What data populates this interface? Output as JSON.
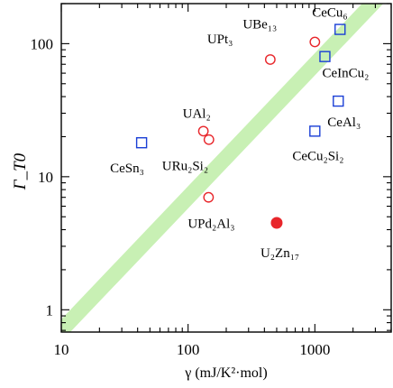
{
  "chart_data": {
    "type": "scatter",
    "title": "",
    "xlabel": "γ (mJ/K²·mol)",
    "ylabel": "Γ_T0",
    "x_scale": "log",
    "y_scale": "log",
    "xlim": [
      10,
      4000
    ],
    "ylim": [
      0.68,
      200
    ],
    "x_ticks": [
      10,
      100,
      1000
    ],
    "x_tick_labels": [
      "10",
      "100",
      "1000"
    ],
    "y_ticks": [
      1,
      10,
      100
    ],
    "y_tick_labels": [
      "1",
      "10",
      "100"
    ],
    "grid": false,
    "legend": "none",
    "trend_band": {
      "description_ratio": 0.07,
      "color": "#c8f0b4"
    },
    "colors": {
      "Ce": "#1a3fd6",
      "U": "#e8262b",
      "band": "#c8f0b4"
    },
    "series": [
      {
        "marker": "open-square",
        "points": [
          {
            "label": "CeCu₆",
            "x": 1580,
            "y": 128
          },
          {
            "label": "CeInCu₂",
            "x": 1200,
            "y": 80
          },
          {
            "label": "CeAl₃",
            "x": 1530,
            "y": 37
          },
          {
            "label": "CeCu₂Si₂",
            "x": 1000,
            "y": 22
          },
          {
            "label": "CeSn₃",
            "x": 43,
            "y": 18
          }
        ]
      },
      {
        "marker": "open-circle",
        "points": [
          {
            "label": "UBe₁₃",
            "x": 1000,
            "y": 103
          },
          {
            "label": "UPt₃",
            "x": 445,
            "y": 76
          },
          {
            "label": "UAl₂",
            "x": 132,
            "y": 22
          },
          {
            "label": "URu₂Si₂",
            "x": 146,
            "y": 19
          },
          {
            "label": "UPd₂Al₃",
            "x": 145,
            "y": 7
          }
        ]
      },
      {
        "marker": "filled-circle",
        "points": [
          {
            "label": "U₂Zn₁₇",
            "x": 500,
            "y": 4.5
          }
        ]
      }
    ]
  }
}
